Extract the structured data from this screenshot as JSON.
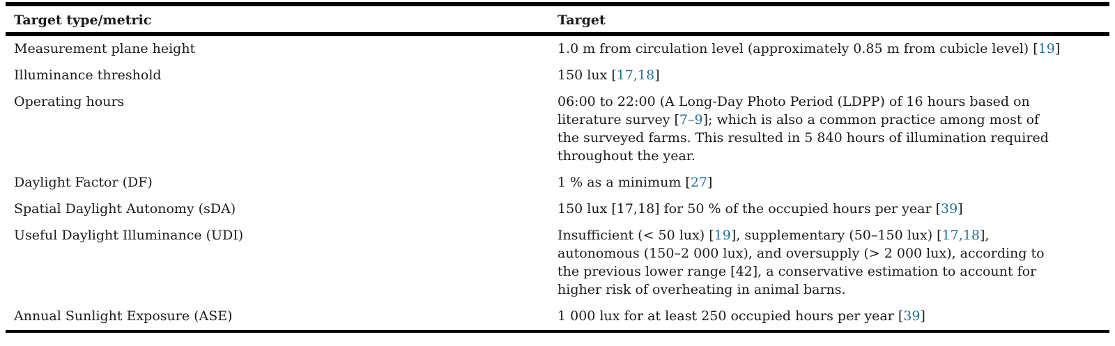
{
  "colors": {
    "background": "#ffffff",
    "text": "#1b1b1b",
    "rule": "#000000",
    "citation_link": "#1f6f9e"
  },
  "table": {
    "headers": {
      "metric": "Target type/metric",
      "target": "Target"
    },
    "rows": [
      {
        "metric": "Measurement plane height",
        "lines": [
          [
            {
              "text": "1.0 m from circulation level (approximately 0.85 m from cubicle level) [",
              "link": false
            },
            {
              "text": "19",
              "link": true
            },
            {
              "text": "]",
              "link": false
            }
          ]
        ]
      },
      {
        "metric": "Illuminance threshold",
        "lines": [
          [
            {
              "text": "150 lux [",
              "link": false
            },
            {
              "text": "17,18",
              "link": true
            },
            {
              "text": "]",
              "link": false
            }
          ]
        ]
      },
      {
        "metric": "Operating hours",
        "lines": [
          [
            {
              "text": "06:00 to 22:00 (A Long-Day Photo Period (LDPP) of 16 hours based on",
              "link": false
            }
          ],
          [
            {
              "text": "literature survey [",
              "link": false
            },
            {
              "text": "7–9",
              "link": true
            },
            {
              "text": "]; which is also a common practice among most of",
              "link": false
            }
          ],
          [
            {
              "text": "the surveyed farms. This resulted in 5 840 hours of illumination required",
              "link": false
            }
          ],
          [
            {
              "text": "throughout the year.",
              "link": false
            }
          ]
        ]
      },
      {
        "metric": "Daylight Factor (DF)",
        "lines": [
          [
            {
              "text": "1 % as a minimum [",
              "link": false
            },
            {
              "text": "27",
              "link": true
            },
            {
              "text": "]",
              "link": false
            }
          ]
        ]
      },
      {
        "metric": "Spatial Daylight Autonomy (sDA)",
        "lines": [
          [
            {
              "text": "150 lux [17,18] for 50 % of the occupied hours per year [",
              "link": false
            },
            {
              "text": "39",
              "link": true
            },
            {
              "text": "]",
              "link": false
            }
          ]
        ]
      },
      {
        "metric": "Useful Daylight Illuminance (UDI)",
        "lines": [
          [
            {
              "text": "Insufficient (< 50 lux) [",
              "link": false
            },
            {
              "text": "19",
              "link": true
            },
            {
              "text": "], supplementary (50–150 lux) [",
              "link": false
            },
            {
              "text": "17,18",
              "link": true
            },
            {
              "text": "],",
              "link": false
            }
          ],
          [
            {
              "text": "autonomous (150–2 000 lux), and oversupply (> 2 000 lux), according to",
              "link": false
            }
          ],
          [
            {
              "text": "the previous lower range [42], a conservative estimation to account for",
              "link": false
            }
          ],
          [
            {
              "text": "higher risk of overheating in animal barns.",
              "link": false
            }
          ]
        ]
      },
      {
        "metric": "Annual Sunlight Exposure (ASE)",
        "lines": [
          [
            {
              "text": "1 000 lux for at least 250 occupied hours per year [",
              "link": false
            },
            {
              "text": "39",
              "link": true
            },
            {
              "text": "]",
              "link": false
            }
          ]
        ]
      }
    ]
  }
}
